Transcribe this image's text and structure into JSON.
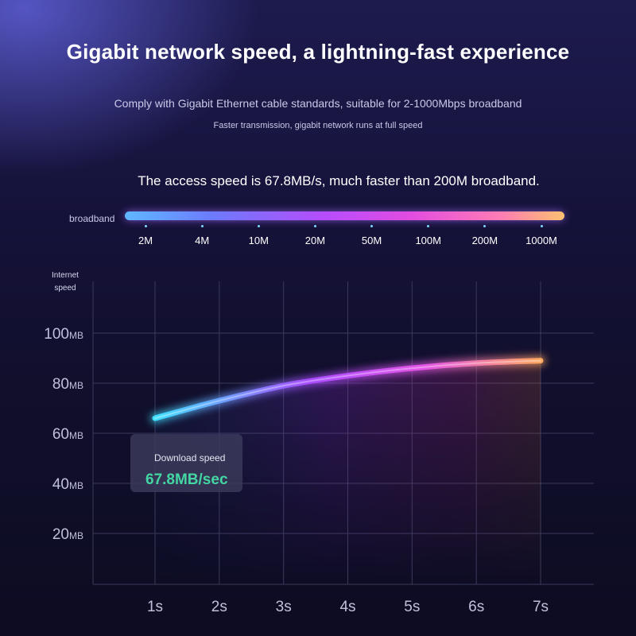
{
  "title": "Gigabit network speed, a lightning-fast experience",
  "subtitle": "Comply with Gigabit Ethernet cable standards, suitable for 2-1000Mbps broadband",
  "subtitle2": "Faster transmission, gigabit network runs at full speed",
  "headline": "The access speed is 67.8MB/s, much faster than 200M broadband.",
  "broadband": {
    "label": "broadband",
    "ticks": [
      "2M",
      "4M",
      "10M",
      "20M",
      "50M",
      "100M",
      "200M",
      "1000M"
    ]
  },
  "tooltip": {
    "label": "Download speed",
    "value": "67.8MB/sec"
  },
  "chart_data": {
    "type": "line",
    "ylabel": "Internet speed",
    "xlabel": "",
    "x": [
      "1s",
      "2s",
      "3s",
      "4s",
      "5s",
      "6s",
      "7s"
    ],
    "y": [
      66,
      73,
      79,
      83,
      86,
      88,
      89
    ],
    "yticks": [
      {
        "value": 100,
        "label": "100",
        "unit": "MB"
      },
      {
        "value": 80,
        "label": "80",
        "unit": "MB"
      },
      {
        "value": 60,
        "label": "60",
        "unit": "MB"
      },
      {
        "value": 40,
        "label": "40",
        "unit": "MB"
      },
      {
        "value": 20,
        "label": "20",
        "unit": "MB"
      }
    ],
    "ylim": [
      0,
      100
    ],
    "grid": true,
    "colors": {
      "line_start": "#3fe0ff",
      "line_mid": "#a94cff",
      "line_mid2": "#e455e6",
      "line_end": "#ffa860",
      "grid": "#3a3a5a"
    }
  }
}
